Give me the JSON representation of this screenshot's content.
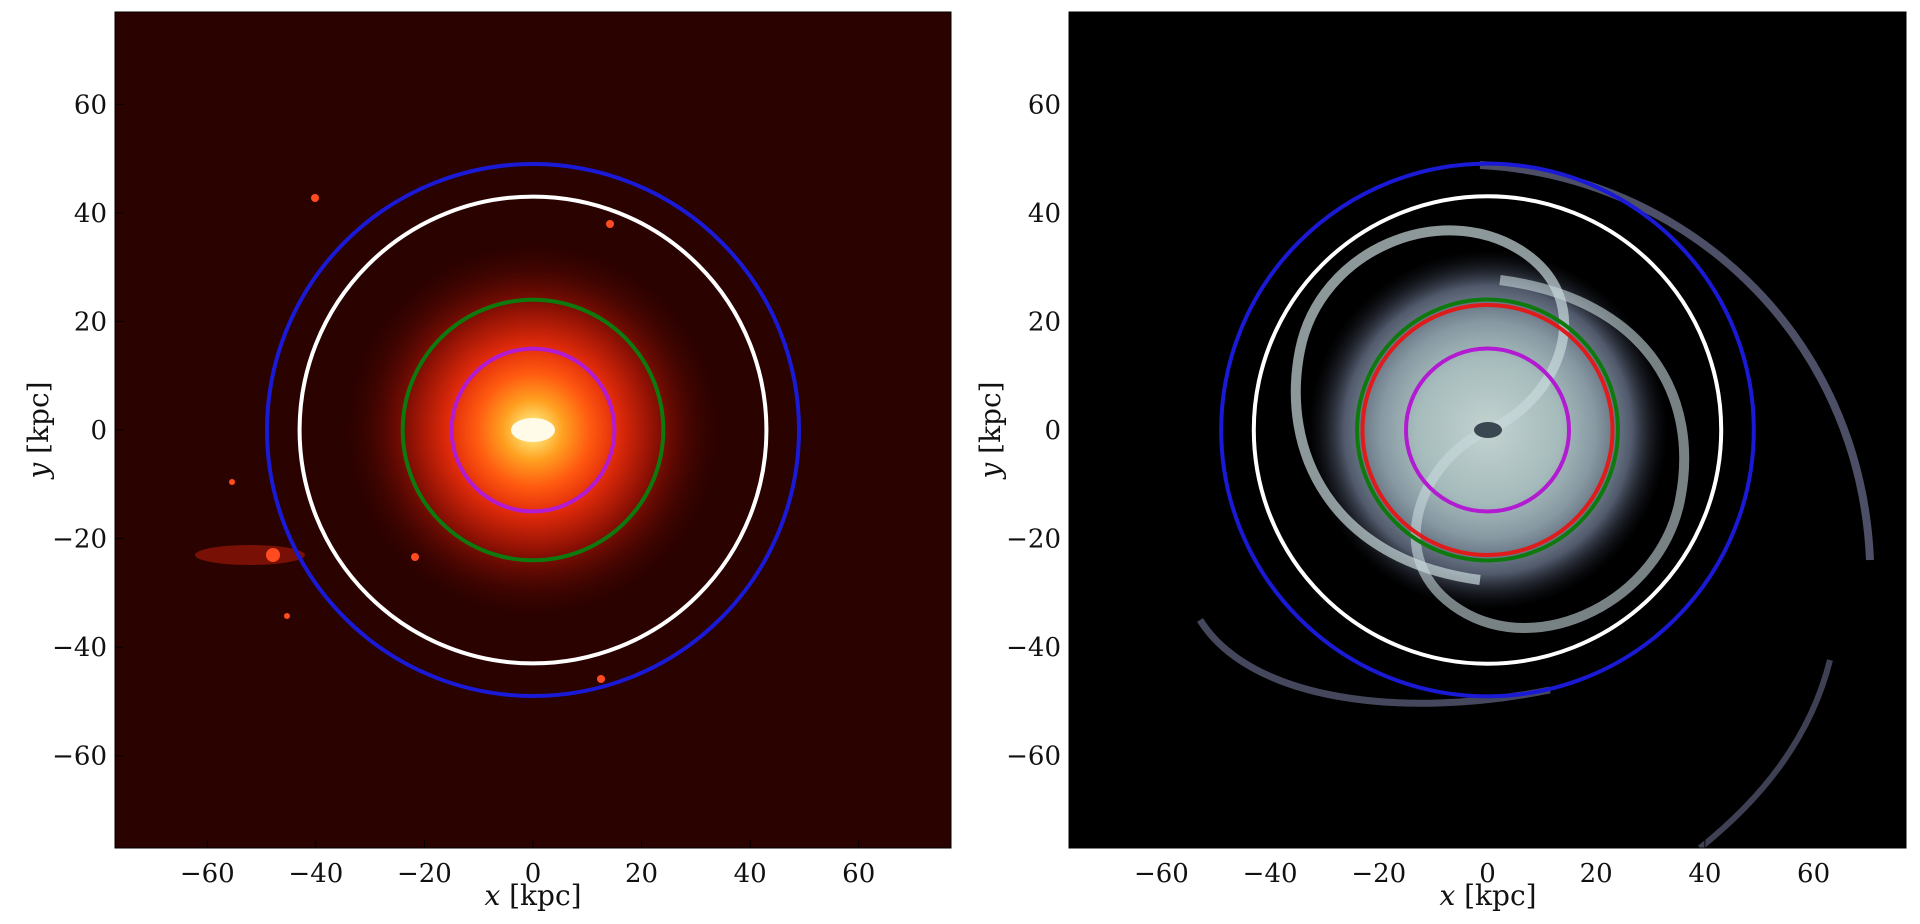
{
  "chart_data": [
    {
      "type": "other",
      "panel": "left",
      "image_style": "red-yellow stellar density map",
      "xlabel_var": "x",
      "xlabel_unit": " [kpc]",
      "ylabel_var": "y",
      "ylabel_unit": " [kpc]",
      "xlim": [
        -77,
        77
      ],
      "ylim": [
        -77,
        77
      ],
      "xticks": [
        -60,
        -40,
        -20,
        0,
        20,
        40,
        60
      ],
      "xtick_labels": [
        "−60",
        "−40",
        "−20",
        "0",
        "20",
        "40",
        "60"
      ],
      "yticks": [
        60,
        40,
        20,
        0,
        -20,
        -40,
        -60
      ],
      "ytick_labels": [
        "60",
        "40",
        "20",
        "0",
        "−20",
        "−40",
        "−60"
      ],
      "circles": [
        {
          "radius": 49,
          "color": "#1a1ad6"
        },
        {
          "radius": 43,
          "color": "#ffffff"
        },
        {
          "radius": 24,
          "color": "#0e7a0e"
        },
        {
          "radius": 15,
          "color": "#b21bd1"
        }
      ]
    },
    {
      "type": "other",
      "panel": "right",
      "image_style": "blue-white gas density map",
      "xlabel_var": "x",
      "xlabel_unit": " [kpc]",
      "ylabel_var": "y",
      "ylabel_unit": " [kpc]",
      "xlim": [
        -77,
        77
      ],
      "ylim": [
        -77,
        77
      ],
      "xticks": [
        -60,
        -40,
        -20,
        0,
        20,
        40,
        60
      ],
      "xtick_labels": [
        "−60",
        "−40",
        "−20",
        "0",
        "20",
        "40",
        "60"
      ],
      "yticks": [
        60,
        40,
        20,
        0,
        -20,
        -40,
        -60
      ],
      "ytick_labels": [
        "60",
        "40",
        "20",
        "0",
        "−20",
        "−40",
        "−60"
      ],
      "circles": [
        {
          "radius": 49,
          "color": "#1a1ad6"
        },
        {
          "radius": 43,
          "color": "#ffffff"
        },
        {
          "radius": 24,
          "color": "#0e7a0e"
        },
        {
          "radius": 23,
          "color": "#e01b1b"
        },
        {
          "radius": 15,
          "color": "#b21bd1"
        }
      ]
    }
  ]
}
